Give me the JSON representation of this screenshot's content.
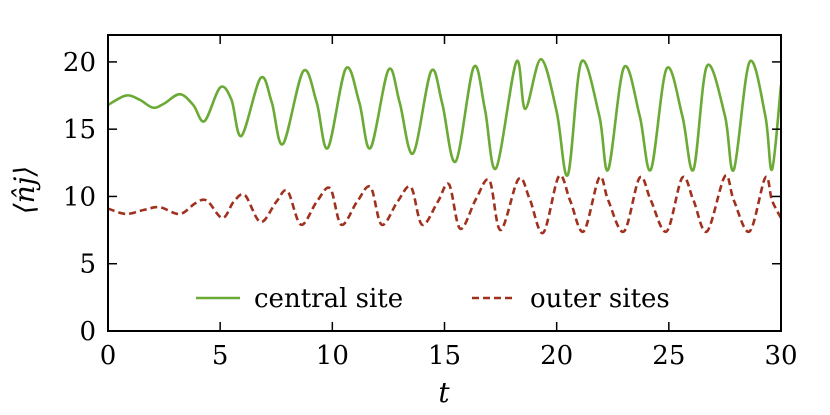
{
  "chart_data": {
    "type": "line",
    "xlabel": "t",
    "ylabel": "⟨n̂j⟩",
    "xlim": [
      0,
      30
    ],
    "ylim": [
      0,
      22
    ],
    "xticks": [
      "0",
      "5",
      "10",
      "15",
      "20",
      "25",
      "30"
    ],
    "yticks": [
      "0",
      "5",
      "10",
      "15",
      "20"
    ],
    "grid": false,
    "legend_placement": "bottom-center",
    "series": [
      {
        "name": "central site",
        "color": "#6aaa35",
        "dash": "solid",
        "x": [
          0,
          0.8,
          1.4,
          2.0,
          2.5,
          3.2,
          3.8,
          4.3,
          5.0,
          5.5,
          5.95,
          6.8,
          7.3,
          7.8,
          8.7,
          9.3,
          9.8,
          10.6,
          11.2,
          11.7,
          12.5,
          13.0,
          13.6,
          14.4,
          14.9,
          15.5,
          16.3,
          16.8,
          17.3,
          18.2,
          18.6,
          19.3,
          20.0,
          20.5,
          21.1,
          21.9,
          22.3,
          23.0,
          23.7,
          24.2,
          24.9,
          25.6,
          26.1,
          26.7,
          27.5,
          27.9,
          28.6,
          29.3,
          29.6,
          30.0
        ],
        "y": [
          16.8,
          17.5,
          17.2,
          16.6,
          16.9,
          17.6,
          16.8,
          15.6,
          18.1,
          17.2,
          14.5,
          18.8,
          17.0,
          13.9,
          19.3,
          17.0,
          13.6,
          19.5,
          17.0,
          13.6,
          19.4,
          17.0,
          13.2,
          19.3,
          16.9,
          12.6,
          19.6,
          16.5,
          12.1,
          20.0,
          16.5,
          20.2,
          16.3,
          11.6,
          20.0,
          16.0,
          12.0,
          19.6,
          16.0,
          12.0,
          19.5,
          16.0,
          12.0,
          19.7,
          16.0,
          12.0,
          20.0,
          16.0,
          12.0,
          18.3
        ]
      },
      {
        "name": "outer sites",
        "color": "#a0311e",
        "dash": "dashed",
        "x": [
          0,
          0.8,
          1.6,
          2.3,
          3.2,
          3.9,
          4.4,
          5.1,
          5.6,
          6.1,
          6.8,
          7.5,
          8.0,
          8.6,
          9.3,
          9.9,
          10.4,
          11.1,
          11.7,
          12.2,
          12.9,
          13.5,
          14.0,
          14.7,
          15.2,
          15.7,
          16.4,
          17.0,
          17.5,
          18.3,
          18.8,
          19.4,
          20.1,
          20.6,
          21.2,
          21.9,
          22.3,
          23.0,
          23.7,
          24.2,
          24.9,
          25.6,
          26.1,
          26.7,
          27.5,
          27.9,
          28.6,
          29.3,
          29.6,
          30.0
        ],
        "y": [
          9.1,
          8.7,
          9.0,
          9.2,
          8.7,
          9.5,
          9.7,
          8.4,
          9.6,
          10.1,
          8.1,
          9.6,
          10.4,
          7.9,
          9.6,
          10.6,
          7.9,
          9.6,
          10.7,
          7.9,
          9.6,
          10.7,
          7.9,
          9.6,
          10.9,
          7.6,
          9.8,
          11.2,
          7.5,
          11.3,
          9.8,
          7.3,
          11.5,
          9.7,
          7.4,
          11.4,
          9.7,
          7.4,
          11.4,
          9.7,
          7.4,
          11.4,
          9.7,
          7.4,
          11.5,
          9.7,
          7.4,
          11.4,
          9.7,
          8.4
        ]
      }
    ]
  }
}
